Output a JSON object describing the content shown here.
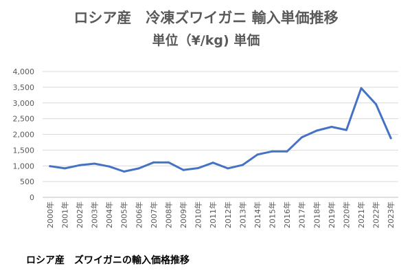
{
  "chart_data": {
    "type": "line",
    "title": "ロシア産　冷凍ズワイガニ 輸入単価推移",
    "subtitle": "単位（¥/kg) 単価",
    "xlabel": "",
    "ylabel": "",
    "ylim": [
      0,
      4000
    ],
    "yticks": [
      "0",
      "500",
      "1,000",
      "1,500",
      "2,000",
      "2,500",
      "3,000",
      "3,500",
      "4,000"
    ],
    "categories": [
      "2000年",
      "2001年",
      "2002年",
      "2003年",
      "2004年",
      "2005年",
      "2006年",
      "2007年",
      "2008年",
      "2009年",
      "2010年",
      "2011年",
      "2012年",
      "2013年",
      "2014年",
      "2015年",
      "2016年",
      "2017年",
      "2018年",
      "2019年",
      "2020年",
      "2021年",
      "2022年",
      "2023年"
    ],
    "series": [
      {
        "color": "#4472C4",
        "values": [
          990,
          920,
          1020,
          1070,
          980,
          820,
          920,
          1110,
          1110,
          870,
          930,
          1100,
          920,
          1030,
          1360,
          1460,
          1460,
          1910,
          2120,
          2240,
          2140,
          3470,
          2960,
          1880
        ]
      }
    ],
    "grid": true,
    "legend": "none"
  },
  "caption": "ロシア産　ズワイガニの輸入価格推移"
}
